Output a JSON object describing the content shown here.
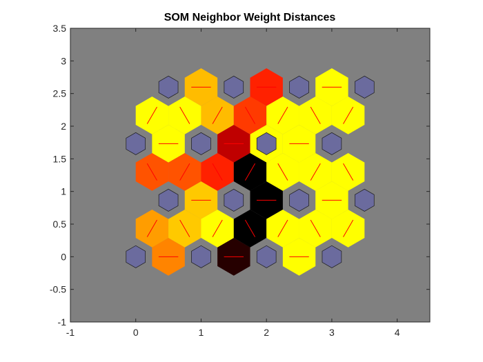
{
  "chart_data": {
    "type": "heatmap",
    "title": "SOM Neighbor Weight Distances",
    "xlabel": "",
    "ylabel": "",
    "xlim": [
      -1,
      4.5
    ],
    "ylim": [
      -1,
      3.5
    ],
    "x_ticks": [
      -1,
      0,
      1,
      2,
      3,
      4
    ],
    "x_tick_labels": [
      "-1",
      "0",
      "1",
      "2",
      "3",
      "4"
    ],
    "y_ticks": [
      -1,
      -0.5,
      0,
      0.5,
      1,
      1.5,
      2,
      2.5,
      3,
      3.5
    ],
    "y_tick_labels": [
      "-1",
      "-0.5",
      "0",
      "0.5",
      "1",
      "1.5",
      "2",
      "2.5",
      "3",
      "3.5"
    ],
    "grid": false,
    "colors": {
      "axes_background": "#808080",
      "neuron": "#6b6b9e",
      "neighbor_line": "#ff0000",
      "colormap": [
        "#000000",
        "#ff0000",
        "#ffa500",
        "#ffff00"
      ]
    },
    "neurons": [
      {
        "x": 0,
        "y": 0
      },
      {
        "x": 1,
        "y": 0
      },
      {
        "x": 2,
        "y": 0
      },
      {
        "x": 3,
        "y": 0
      },
      {
        "x": 0.5,
        "y": 0.866
      },
      {
        "x": 1.5,
        "y": 0.866
      },
      {
        "x": 2.5,
        "y": 0.866
      },
      {
        "x": 3.5,
        "y": 0.866
      },
      {
        "x": 0,
        "y": 1.732
      },
      {
        "x": 1,
        "y": 1.732
      },
      {
        "x": 2,
        "y": 1.732
      },
      {
        "x": 3,
        "y": 1.732
      },
      {
        "x": 0.5,
        "y": 2.598
      },
      {
        "x": 1.5,
        "y": 2.598
      },
      {
        "x": 2.5,
        "y": 2.598
      },
      {
        "x": 3.5,
        "y": 2.598
      }
    ],
    "neighbor_links": [
      {
        "x": 0.5,
        "y": 0,
        "level": 0.6
      },
      {
        "x": 1.5,
        "y": 0,
        "level": 0.05
      },
      {
        "x": 2.5,
        "y": 0,
        "level": 1.0
      },
      {
        "x": 2,
        "y": 1.732,
        "level": 1.0
      },
      {
        "x": 0.5,
        "y": 1.732,
        "level": 1.0
      },
      {
        "x": 1.5,
        "y": 1.732,
        "level": 0.25
      },
      {
        "x": 2.5,
        "y": 1.732,
        "level": 1.0
      },
      {
        "x": 1,
        "y": 2.598,
        "level": 0.75
      },
      {
        "x": 2,
        "y": 2.598,
        "level": 0.4
      },
      {
        "x": 3,
        "y": 2.598,
        "level": 1.0
      },
      {
        "x": 1,
        "y": 0.866,
        "level": 0.8
      },
      {
        "x": 2,
        "y": 0.866,
        "level": 0.0
      },
      {
        "x": 3,
        "y": 0.866,
        "level": 1.0
      },
      {
        "x": 0.25,
        "y": 0.433,
        "level": 0.65
      },
      {
        "x": 0.75,
        "y": 0.433,
        "level": 0.8
      },
      {
        "x": 1.25,
        "y": 0.433,
        "level": 1.0
      },
      {
        "x": 1.75,
        "y": 0.433,
        "level": 0.0
      },
      {
        "x": 2.25,
        "y": 0.433,
        "level": 1.0
      },
      {
        "x": 2.75,
        "y": 0.433,
        "level": 1.0
      },
      {
        "x": 3.25,
        "y": 0.433,
        "level": 1.0
      },
      {
        "x": 0.25,
        "y": 1.299,
        "level": 0.5
      },
      {
        "x": 0.75,
        "y": 1.299,
        "level": 0.5
      },
      {
        "x": 1.25,
        "y": 1.299,
        "level": 0.4
      },
      {
        "x": 1.75,
        "y": 1.299,
        "level": 0.0
      },
      {
        "x": 2.25,
        "y": 1.299,
        "level": 1.0
      },
      {
        "x": 2.75,
        "y": 1.299,
        "level": 1.0
      },
      {
        "x": 3.25,
        "y": 1.299,
        "level": 1.0
      },
      {
        "x": 0.25,
        "y": 2.165,
        "level": 1.0
      },
      {
        "x": 0.75,
        "y": 2.165,
        "level": 1.0
      },
      {
        "x": 1.25,
        "y": 2.165,
        "level": 0.75
      },
      {
        "x": 1.75,
        "y": 2.165,
        "level": 0.45
      },
      {
        "x": 2.25,
        "y": 2.165,
        "level": 1.0
      },
      {
        "x": 2.75,
        "y": 2.165,
        "level": 1.0
      },
      {
        "x": 3.25,
        "y": 2.165,
        "level": 1.0
      }
    ]
  }
}
